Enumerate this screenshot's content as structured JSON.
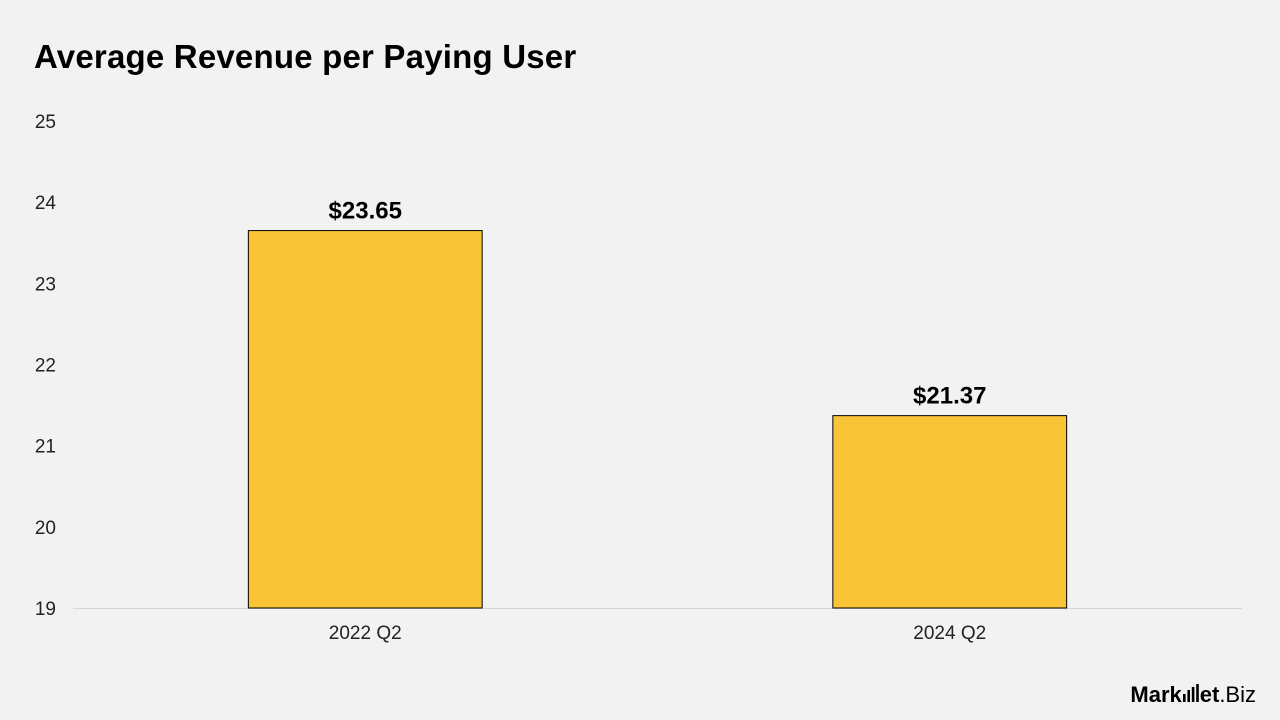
{
  "chart_data": {
    "type": "bar",
    "title": "Average Revenue per Paying User",
    "categories": [
      "2022 Q2",
      "2024 Q2"
    ],
    "values": [
      23.65,
      21.37
    ],
    "data_labels": [
      "$23.65",
      "$21.37"
    ],
    "xlabel": "",
    "ylabel": "",
    "ylim": [
      19,
      25
    ],
    "yticks": [
      19,
      20,
      21,
      22,
      23,
      24,
      25
    ],
    "grid": false,
    "legend": "none",
    "bar_color": "#f9c436",
    "bar_outline": "#000000"
  },
  "branding": {
    "logo_text_a": "Mark",
    "logo_text_b": "et",
    "logo_text_c": ".Biz",
    "logo_icon": "bar-chart-icon"
  }
}
